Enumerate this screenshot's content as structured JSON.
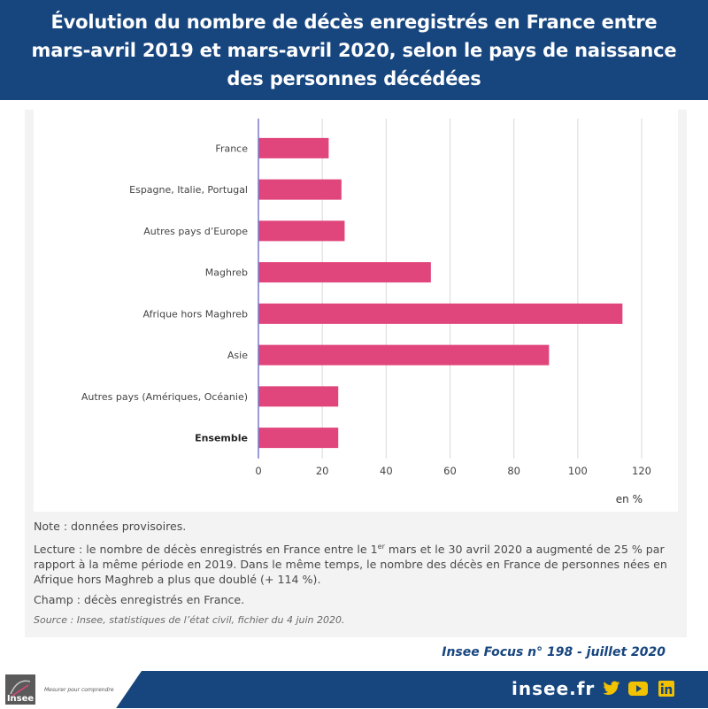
{
  "header": {
    "title": "Évolution du nombre de décès enregistrés en France entre mars-avril 2019 et mars-avril 2020, selon le pays de naissance des personnes décédées"
  },
  "chart_data": {
    "type": "bar",
    "orientation": "horizontal",
    "categories": [
      "France",
      "Espagne, Italie, Portugal",
      "Autres pays d’Europe",
      "Maghreb",
      "Afrique hors Maghreb",
      "Asie",
      "Autres pays (Amériques, Océanie)",
      "Ensemble"
    ],
    "values": [
      22,
      26,
      27,
      54,
      114,
      91,
      25,
      25
    ],
    "xlim": [
      0,
      120
    ],
    "ticks": [
      0,
      20,
      40,
      60,
      80,
      100,
      120
    ],
    "unit_label": "en %",
    "bold_category": "Ensemble",
    "bar_color": "#e0457b",
    "grid": true
  },
  "notes": {
    "note": "Note : données provisoires.",
    "lecture_part1": "Lecture : le nombre de décès enregistrés en France entre le 1",
    "lecture_sup": "er",
    "lecture_part2": " mars et le 30 avril 2020 a augmenté de 25 % par rapport à la même période en 2019. Dans le même temps, le nombre des décès en France de personnes nées en Afrique hors Maghreb a plus que doublé (+ 114 %).",
    "champ": "Champ : décès enregistrés en France.",
    "source": "Source : Insee, statistiques de l’état civil, fichier du 4 juin 2020."
  },
  "publication": "Insee Focus n° 198 - juillet 2020",
  "footer": {
    "logo": "Insee",
    "tagline": "Mesurer pour comprendre",
    "site": "insee.fr",
    "icons": [
      "twitter-icon",
      "youtube-icon",
      "linkedin-icon"
    ]
  },
  "colors": {
    "brand": "#17467f",
    "bar": "#e0457b"
  }
}
